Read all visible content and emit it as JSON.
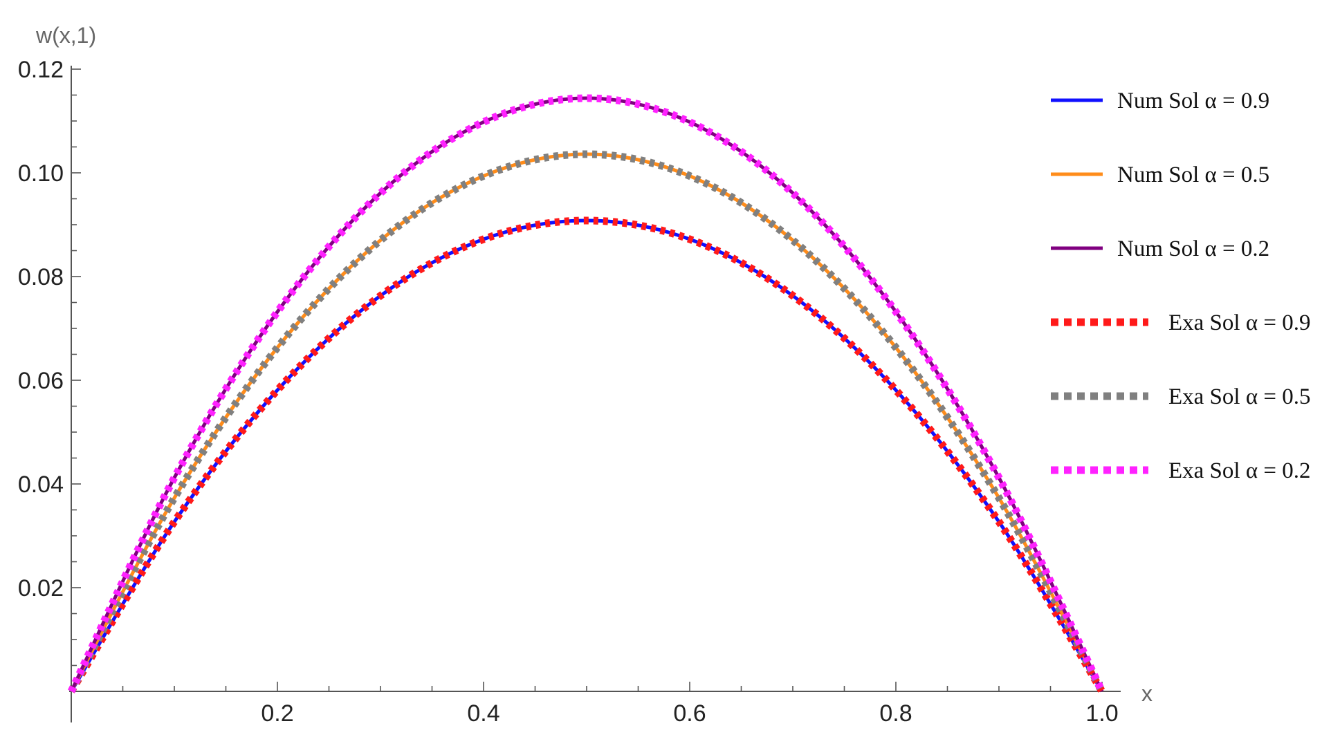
{
  "chart_data": {
    "type": "line",
    "xlabel": "x",
    "ylabel": "w(x,1)",
    "xlim": [
      0,
      1
    ],
    "ylim": [
      0,
      0.12
    ],
    "x_ticks": [
      "0.2",
      "0.4",
      "0.6",
      "0.8",
      "1.0"
    ],
    "y_ticks": [
      "0.02",
      "0.04",
      "0.06",
      "0.08",
      "0.10",
      "0.12"
    ],
    "x": [
      0,
      0.1,
      0.2,
      0.3,
      0.4,
      0.5,
      0.6,
      0.7,
      0.8,
      0.9,
      1.0
    ],
    "series": [
      {
        "name": "Num Sol α = 0.9",
        "style": "solid",
        "color": "#1010ff",
        "values": [
          0,
          0.0327,
          0.0581,
          0.0763,
          0.0872,
          0.0908,
          0.0872,
          0.0763,
          0.0581,
          0.0327,
          0
        ]
      },
      {
        "name": "Num Sol α = 0.5",
        "style": "solid",
        "color": "#ff8c1a",
        "values": [
          0,
          0.0373,
          0.0663,
          0.087,
          0.0994,
          0.1036,
          0.0994,
          0.087,
          0.0663,
          0.0373,
          0
        ]
      },
      {
        "name": "Num Sol α = 0.2",
        "style": "solid",
        "color": "#800080",
        "values": [
          0,
          0.0412,
          0.0732,
          0.0961,
          0.1098,
          0.1144,
          0.1098,
          0.0961,
          0.0732,
          0.0412,
          0
        ]
      },
      {
        "name": "Exa Sol α = 0.9",
        "style": "dotted",
        "color": "#ff1a1a",
        "values": [
          0,
          0.0327,
          0.0581,
          0.0763,
          0.0872,
          0.0908,
          0.0872,
          0.0763,
          0.0581,
          0.0327,
          0
        ]
      },
      {
        "name": "Exa Sol α = 0.5",
        "style": "dotted",
        "color": "#808080",
        "values": [
          0,
          0.0373,
          0.0663,
          0.087,
          0.0994,
          0.1036,
          0.0994,
          0.087,
          0.0663,
          0.0373,
          0
        ]
      },
      {
        "name": "Exa Sol α = 0.2",
        "style": "dotted",
        "color": "#ff22ff",
        "values": [
          0,
          0.0412,
          0.0732,
          0.0961,
          0.1098,
          0.1144,
          0.1098,
          0.0961,
          0.0732,
          0.0412,
          0
        ]
      }
    ],
    "legend_position": "right"
  }
}
